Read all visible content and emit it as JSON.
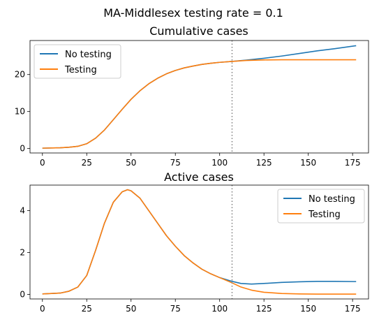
{
  "suptitle": "MA-Middlesex testing rate = 0.1",
  "colors": {
    "no_testing": "#1f77b4",
    "testing": "#ff7f0e",
    "vline": "#7f7f7f"
  },
  "chart_data": [
    {
      "type": "line",
      "title": "Cumulative cases",
      "xlabel": "",
      "ylabel": "",
      "xlim": [
        -7,
        184
      ],
      "ylim": [
        -1.2,
        29.2
      ],
      "xticks": [
        0,
        25,
        50,
        75,
        100,
        125,
        150,
        175
      ],
      "yticks": [
        0,
        10,
        20
      ],
      "vline_x": 107,
      "legend_position": "top-left",
      "series": [
        {
          "name": "No testing",
          "color": "#1f77b4",
          "x": [
            0,
            10,
            15,
            20,
            25,
            30,
            35,
            40,
            45,
            50,
            55,
            60,
            65,
            70,
            75,
            80,
            85,
            90,
            95,
            100,
            107,
            115,
            125,
            135,
            145,
            155,
            165,
            177
          ],
          "y": [
            0.1,
            0.2,
            0.35,
            0.6,
            1.3,
            2.8,
            5.0,
            7.8,
            10.6,
            13.3,
            15.6,
            17.5,
            19.0,
            20.2,
            21.1,
            21.8,
            22.3,
            22.75,
            23.05,
            23.3,
            23.55,
            23.9,
            24.4,
            25.0,
            25.7,
            26.4,
            27.0,
            27.8
          ]
        },
        {
          "name": "Testing",
          "color": "#ff7f0e",
          "x": [
            0,
            10,
            15,
            20,
            25,
            30,
            35,
            40,
            45,
            50,
            55,
            60,
            65,
            70,
            75,
            80,
            85,
            90,
            95,
            100,
            107,
            115,
            125,
            135,
            145,
            155,
            165,
            177
          ],
          "y": [
            0.1,
            0.2,
            0.35,
            0.6,
            1.3,
            2.8,
            5.0,
            7.8,
            10.6,
            13.3,
            15.6,
            17.5,
            19.0,
            20.2,
            21.1,
            21.8,
            22.3,
            22.75,
            23.05,
            23.3,
            23.55,
            23.8,
            23.95,
            24.0,
            24.0,
            24.0,
            24.0,
            24.0
          ]
        }
      ]
    },
    {
      "type": "line",
      "title": "Active cases",
      "xlabel": "",
      "ylabel": "",
      "xlim": [
        -7,
        184
      ],
      "ylim": [
        -0.22,
        5.22
      ],
      "xticks": [
        0,
        25,
        50,
        75,
        100,
        125,
        150,
        175
      ],
      "yticks": [
        0,
        2,
        4
      ],
      "vline_x": 107,
      "legend_position": "top-right",
      "series": [
        {
          "name": "No testing",
          "color": "#1f77b4",
          "x": [
            0,
            10,
            15,
            20,
            25,
            30,
            35,
            40,
            45,
            48,
            50,
            55,
            60,
            65,
            70,
            75,
            80,
            85,
            90,
            95,
            100,
            107,
            112,
            118,
            125,
            135,
            145,
            155,
            165,
            177
          ],
          "y": [
            0.02,
            0.06,
            0.15,
            0.35,
            0.9,
            2.1,
            3.4,
            4.4,
            4.9,
            5.0,
            4.95,
            4.6,
            4.0,
            3.4,
            2.8,
            2.3,
            1.85,
            1.5,
            1.2,
            0.98,
            0.8,
            0.62,
            0.52,
            0.49,
            0.52,
            0.57,
            0.6,
            0.62,
            0.62,
            0.61
          ]
        },
        {
          "name": "Testing",
          "color": "#ff7f0e",
          "x": [
            0,
            10,
            15,
            20,
            25,
            30,
            35,
            40,
            45,
            48,
            50,
            55,
            60,
            65,
            70,
            75,
            80,
            85,
            90,
            95,
            100,
            107,
            112,
            118,
            125,
            135,
            145,
            155,
            165,
            177
          ],
          "y": [
            0.02,
            0.06,
            0.15,
            0.35,
            0.9,
            2.1,
            3.4,
            4.4,
            4.9,
            5.0,
            4.95,
            4.6,
            4.0,
            3.4,
            2.8,
            2.3,
            1.85,
            1.5,
            1.2,
            0.98,
            0.8,
            0.55,
            0.35,
            0.2,
            0.1,
            0.04,
            0.02,
            0.01,
            0.01,
            0.01
          ]
        }
      ]
    }
  ]
}
